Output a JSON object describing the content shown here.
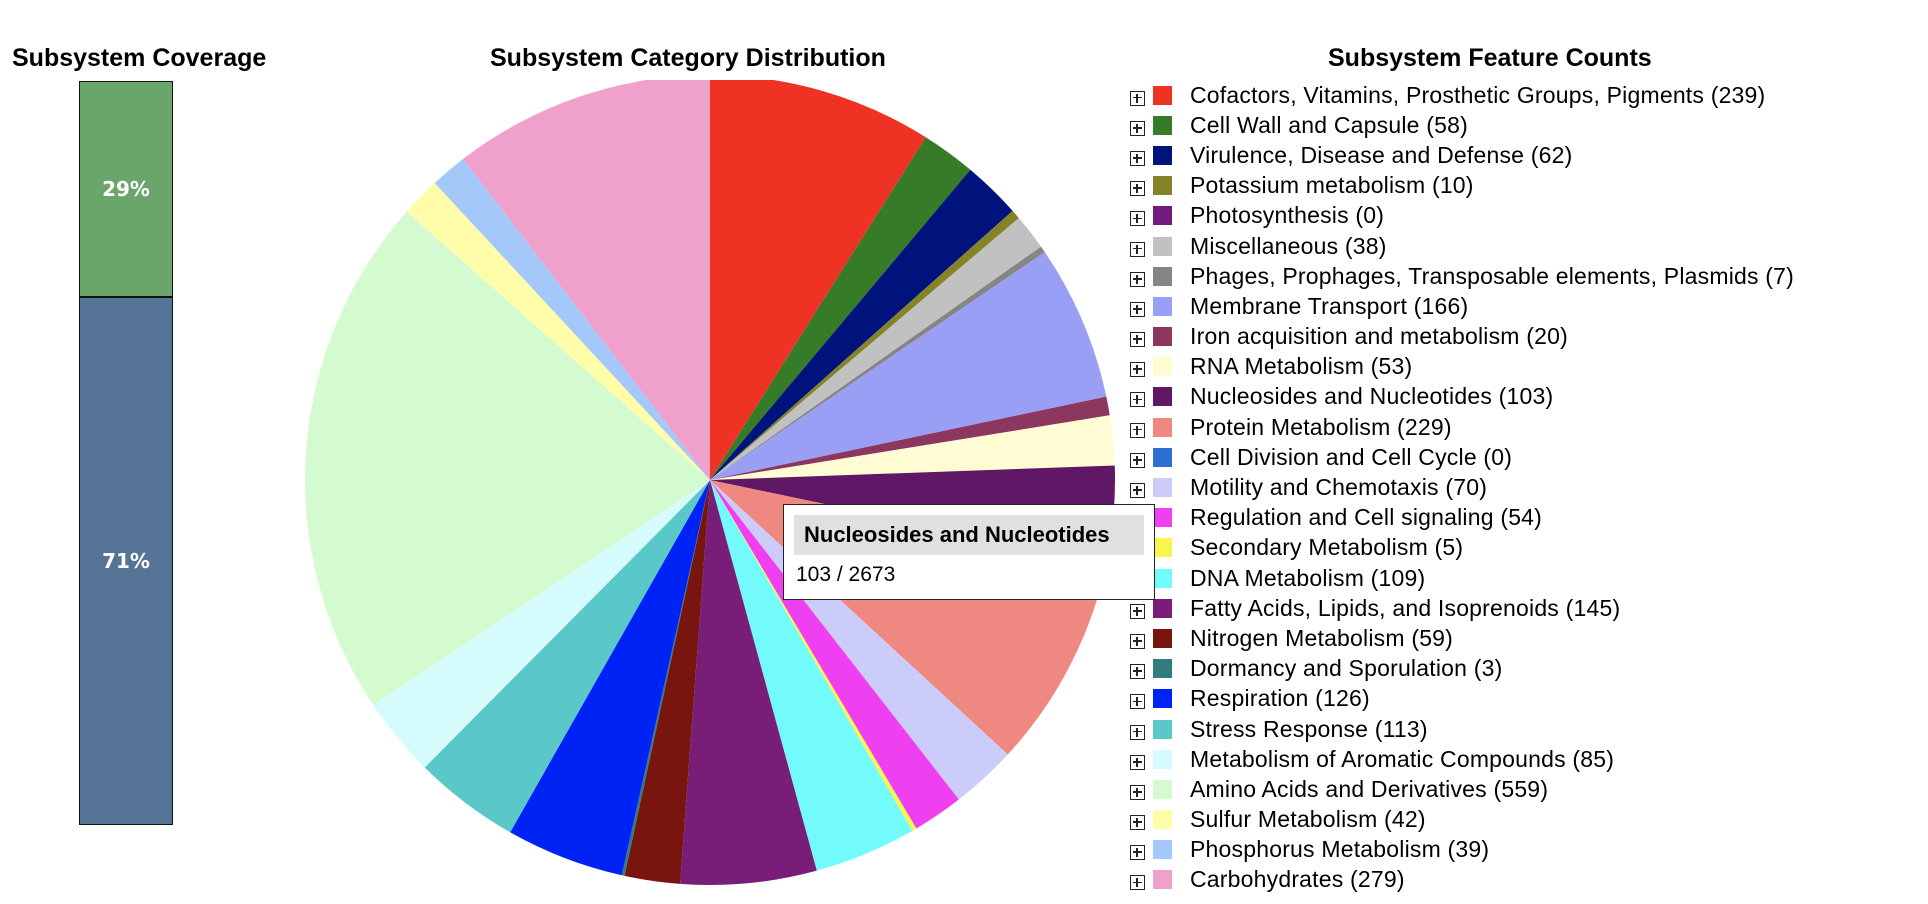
{
  "coverage": {
    "title": "Subsystem Coverage",
    "segments": [
      {
        "label": "29%",
        "fraction": 0.29,
        "color": "#6aa56c"
      },
      {
        "label": "71%",
        "fraction": 0.71,
        "color": "#567496"
      }
    ]
  },
  "pie": {
    "title": "Subsystem Category Distribution"
  },
  "legend": {
    "title": "Subsystem Feature Counts",
    "expand_icon": "plus-box-icon"
  },
  "tooltip": {
    "title": "Nucleosides and Nucleotides",
    "value": "103 / 2673"
  },
  "chart_data": {
    "type": "pie",
    "total": 2673,
    "series": [
      {
        "name": "Cofactors, Vitamins, Prosthetic Groups, Pigments",
        "value": 239,
        "color": "#ee3325"
      },
      {
        "name": "Cell Wall and Capsule",
        "value": 58,
        "color": "#367b27"
      },
      {
        "name": "Virulence, Disease and Defense",
        "value": 62,
        "color": "#00137c"
      },
      {
        "name": "Potassium metabolism",
        "value": 10,
        "color": "#858327"
      },
      {
        "name": "Photosynthesis",
        "value": 0,
        "color": "#731a80"
      },
      {
        "name": "Miscellaneous",
        "value": 38,
        "color": "#c1c1c1"
      },
      {
        "name": "Phages, Prophages, Transposable elements, Plasmids",
        "value": 7,
        "color": "#858585"
      },
      {
        "name": "Membrane Transport",
        "value": 166,
        "color": "#999ff5"
      },
      {
        "name": "Iron acquisition and metabolism",
        "value": 20,
        "color": "#8c3760"
      },
      {
        "name": "RNA Metabolism",
        "value": 53,
        "color": "#fffbd2"
      },
      {
        "name": "Nucleosides and Nucleotides",
        "value": 103,
        "color": "#5f1766"
      },
      {
        "name": "Protein Metabolism",
        "value": 229,
        "color": "#ef8880"
      },
      {
        "name": "Cell Division and Cell Cycle",
        "value": 0,
        "color": "#2f6fd2"
      },
      {
        "name": "Motility and Chemotaxis",
        "value": 70,
        "color": "#ccccfa"
      },
      {
        "name": "Regulation and Cell signaling",
        "value": 54,
        "color": "#ee40f0"
      },
      {
        "name": "Secondary Metabolism",
        "value": 5,
        "color": "#faf450"
      },
      {
        "name": "DNA Metabolism",
        "value": 109,
        "color": "#73fbfc"
      },
      {
        "name": "Fatty Acids, Lipids, and Isoprenoids",
        "value": 145,
        "color": "#781e79"
      },
      {
        "name": "Nitrogen Metabolism",
        "value": 59,
        "color": "#78150e"
      },
      {
        "name": "Dormancy and Sporulation",
        "value": 3,
        "color": "#317c80"
      },
      {
        "name": "Respiration",
        "value": 126,
        "color": "#0023f5"
      },
      {
        "name": "Stress Response",
        "value": 113,
        "color": "#5ac7c8"
      },
      {
        "name": "Metabolism of Aromatic Compounds",
        "value": 85,
        "color": "#d5fbfc"
      },
      {
        "name": "Amino Acids and Derivatives",
        "value": 559,
        "color": "#d4fbd0"
      },
      {
        "name": "Sulfur Metabolism",
        "value": 42,
        "color": "#fffdaa"
      },
      {
        "name": "Phosphorus Metabolism",
        "value": 39,
        "color": "#a3c8f9"
      },
      {
        "name": "Carbohydrates",
        "value": 279,
        "color": "#f0a1cb"
      }
    ]
  }
}
